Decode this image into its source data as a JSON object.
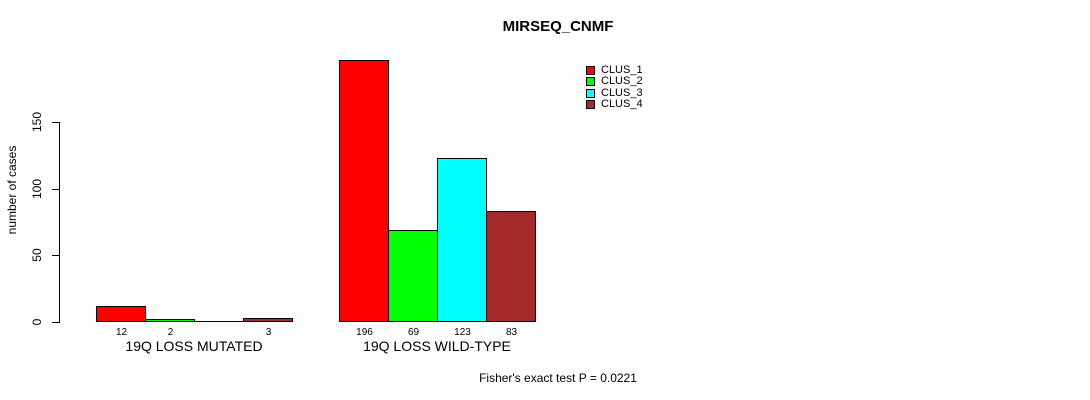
{
  "chart_data": {
    "type": "bar",
    "title": "MIRSEQ_CNMF",
    "ylabel": "number of cases",
    "xlabel": "",
    "categories": [
      "19Q LOSS MUTATED",
      "19Q LOSS WILD-TYPE"
    ],
    "series": [
      {
        "name": "CLUS_1",
        "color": "#FF0000",
        "values": [
          12,
          196
        ]
      },
      {
        "name": "CLUS_2",
        "color": "#00FF00",
        "values": [
          2,
          69
        ]
      },
      {
        "name": "CLUS_3",
        "color": "#00FFFF",
        "values": [
          0,
          123
        ]
      },
      {
        "name": "CLUS_4",
        "color": "#A52A2A",
        "values": [
          3,
          83
        ]
      }
    ],
    "yticks": [
      0,
      50,
      100,
      150
    ],
    "ylim": [
      0,
      207
    ],
    "grid": false,
    "bar_value_labels": {
      "show": true,
      "hide_zero": true
    },
    "legend": {
      "position": "top-right",
      "entries": [
        {
          "label": "CLUS_1",
          "color": "#FF0000"
        },
        {
          "label": "CLUS_2",
          "color": "#00FF00"
        },
        {
          "label": "CLUS_3",
          "color": "#00FFFF"
        },
        {
          "label": "CLUS_4",
          "color": "#A52A2A"
        }
      ]
    },
    "annotation": "Fisher's exact test P = 0.0221"
  }
}
